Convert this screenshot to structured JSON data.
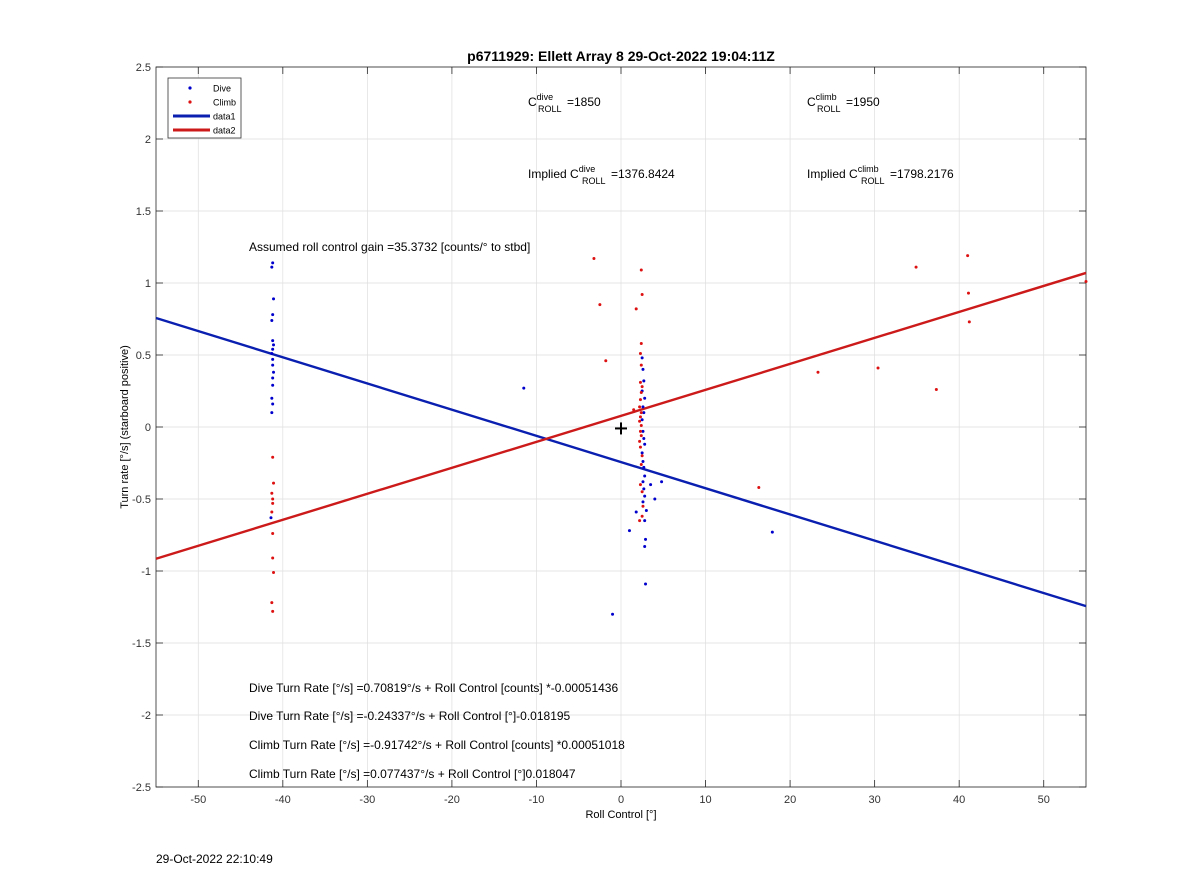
{
  "chart_data": {
    "type": "scatter",
    "title": "p6711929: Ellett Array 8 29-Oct-2022 19:04:11Z",
    "xlabel": "Roll Control [°]",
    "ylabel": "Turn rate [°/s] (starboard positive)",
    "xlim": [
      -55,
      55
    ],
    "ylim": [
      -2.5,
      2.5
    ],
    "xticks": [
      -50,
      -40,
      -30,
      -20,
      -10,
      0,
      10,
      20,
      30,
      40,
      50
    ],
    "yticks": [
      -2.5,
      -2,
      -1.5,
      -1,
      -0.5,
      0,
      0.5,
      1,
      1.5,
      2,
      2.5
    ],
    "grid": true,
    "legend_position": "top-left",
    "legend": [
      {
        "label": "Dive",
        "kind": "marker",
        "color": "#0000cc"
      },
      {
        "label": "Climb",
        "kind": "marker",
        "color": "#dd1111"
      },
      {
        "label": "data1",
        "kind": "line",
        "color": "#0a1fb0"
      },
      {
        "label": "data2",
        "kind": "line",
        "color": "#cc1a1a"
      }
    ],
    "series": [
      {
        "name": "Dive",
        "kind": "scatter",
        "color": "#0000cc",
        "points": [
          [
            -41.2,
            1.14
          ],
          [
            -41.3,
            1.11
          ],
          [
            -41.1,
            0.89
          ],
          [
            -41.2,
            0.78
          ],
          [
            -41.3,
            0.74
          ],
          [
            -41.2,
            0.6
          ],
          [
            -41.1,
            0.57
          ],
          [
            -41.2,
            0.54
          ],
          [
            -41.3,
            0.51
          ],
          [
            -41.2,
            0.47
          ],
          [
            -41.2,
            0.43
          ],
          [
            -41.1,
            0.38
          ],
          [
            -41.2,
            0.34
          ],
          [
            -41.2,
            0.29
          ],
          [
            -41.3,
            0.2
          ],
          [
            -41.2,
            0.16
          ],
          [
            -41.3,
            0.1
          ],
          [
            -41.4,
            -0.63
          ],
          [
            -11.5,
            0.27
          ],
          [
            -1.0,
            -1.3
          ],
          [
            1.0,
            -0.72
          ],
          [
            1.8,
            -0.59
          ],
          [
            2.5,
            0.48
          ],
          [
            2.6,
            0.4
          ],
          [
            2.7,
            0.32
          ],
          [
            2.5,
            0.25
          ],
          [
            2.8,
            0.2
          ],
          [
            2.6,
            0.14
          ],
          [
            2.7,
            0.1
          ],
          [
            2.5,
            0.05
          ],
          [
            2.6,
            -0.03
          ],
          [
            2.7,
            -0.08
          ],
          [
            2.8,
            -0.12
          ],
          [
            2.5,
            -0.18
          ],
          [
            2.6,
            -0.24
          ],
          [
            2.7,
            -0.28
          ],
          [
            2.8,
            -0.34
          ],
          [
            2.6,
            -0.38
          ],
          [
            2.7,
            -0.43
          ],
          [
            2.8,
            -0.48
          ],
          [
            2.6,
            -0.52
          ],
          [
            3.0,
            -0.58
          ],
          [
            2.8,
            -0.65
          ],
          [
            2.9,
            -0.78
          ],
          [
            2.8,
            -0.83
          ],
          [
            2.9,
            -1.09
          ],
          [
            3.5,
            -0.4
          ],
          [
            4.0,
            -0.5
          ],
          [
            4.8,
            -0.38
          ],
          [
            17.9,
            -0.73
          ]
        ]
      },
      {
        "name": "Climb",
        "kind": "scatter",
        "color": "#dd1111",
        "points": [
          [
            -41.2,
            -0.21
          ],
          [
            -41.1,
            -0.39
          ],
          [
            -41.3,
            -0.46
          ],
          [
            -41.2,
            -0.5
          ],
          [
            -41.2,
            -0.53
          ],
          [
            -41.3,
            -0.59
          ],
          [
            -41.2,
            -0.74
          ],
          [
            -41.2,
            -0.91
          ],
          [
            -41.1,
            -1.01
          ],
          [
            -41.3,
            -1.22
          ],
          [
            -41.2,
            -1.28
          ],
          [
            -3.2,
            1.17
          ],
          [
            -2.5,
            0.85
          ],
          [
            -1.8,
            0.46
          ],
          [
            1.8,
            0.82
          ],
          [
            2.4,
            1.09
          ],
          [
            2.5,
            0.92
          ],
          [
            2.4,
            0.58
          ],
          [
            2.3,
            0.51
          ],
          [
            2.4,
            0.43
          ],
          [
            2.3,
            0.31
          ],
          [
            2.5,
            0.28
          ],
          [
            2.4,
            0.24
          ],
          [
            2.3,
            0.19
          ],
          [
            2.2,
            0.14
          ],
          [
            2.4,
            0.1
          ],
          [
            2.3,
            0.07
          ],
          [
            2.2,
            0.04
          ],
          [
            2.4,
            0.01
          ],
          [
            2.3,
            -0.03
          ],
          [
            2.4,
            -0.06
          ],
          [
            2.2,
            -0.1
          ],
          [
            2.3,
            -0.14
          ],
          [
            2.5,
            -0.2
          ],
          [
            2.4,
            -0.26
          ],
          [
            2.3,
            -0.4
          ],
          [
            2.5,
            -0.45
          ],
          [
            2.6,
            -0.55
          ],
          [
            2.5,
            -0.62
          ],
          [
            2.2,
            -0.65
          ],
          [
            1.5,
            0.12
          ],
          [
            16.3,
            -0.42
          ],
          [
            23.3,
            0.38
          ],
          [
            30.4,
            0.41
          ],
          [
            34.9,
            1.11
          ],
          [
            37.3,
            0.26
          ],
          [
            41.0,
            1.19
          ],
          [
            41.1,
            0.93
          ],
          [
            41.2,
            0.73
          ],
          [
            55.0,
            1.01
          ]
        ]
      },
      {
        "name": "data1",
        "kind": "line",
        "color": "#0a1fb0",
        "points": [
          [
            -55,
            0.757
          ],
          [
            55,
            -1.244
          ]
        ]
      },
      {
        "name": "data2",
        "kind": "line",
        "color": "#cc1a1a",
        "points": [
          [
            -55,
            -0.915
          ],
          [
            55,
            1.07
          ]
        ]
      }
    ],
    "center_marker": [
      0,
      -0.01
    ],
    "annotations": {
      "c_dive_base": "C",
      "c_dive_sup": "dive",
      "c_dive_sub": "ROLL",
      "c_dive_val": "=1850",
      "c_climb_base": "C",
      "c_climb_sup": "climb",
      "c_climb_sub": "ROLL",
      "c_climb_val": "=1950",
      "implied_dive_prefix": "Implied C",
      "implied_dive_sup": "dive",
      "implied_dive_sub": "ROLL",
      "implied_dive_val": "=1376.8424",
      "implied_climb_prefix": "Implied C",
      "implied_climb_sup": "climb",
      "implied_climb_sub": "ROLL",
      "implied_climb_val": "=1798.2176",
      "gain": "Assumed roll control gain =35.3732 [counts/° to stbd]",
      "eq1": "Dive Turn Rate [°/s] =0.70819°/s + Roll Control [counts] *-0.00051436",
      "eq2": "Dive Turn Rate [°/s] =-0.24337°/s + Roll Control [°]-0.018195",
      "eq3": "Climb Turn Rate [°/s] =-0.91742°/s + Roll Control [counts] *0.00051018",
      "eq4": "Climb Turn Rate [°/s] =0.077437°/s + Roll Control [°]0.018047"
    }
  },
  "footer": {
    "timestamp": "29-Oct-2022 22:10:49"
  }
}
